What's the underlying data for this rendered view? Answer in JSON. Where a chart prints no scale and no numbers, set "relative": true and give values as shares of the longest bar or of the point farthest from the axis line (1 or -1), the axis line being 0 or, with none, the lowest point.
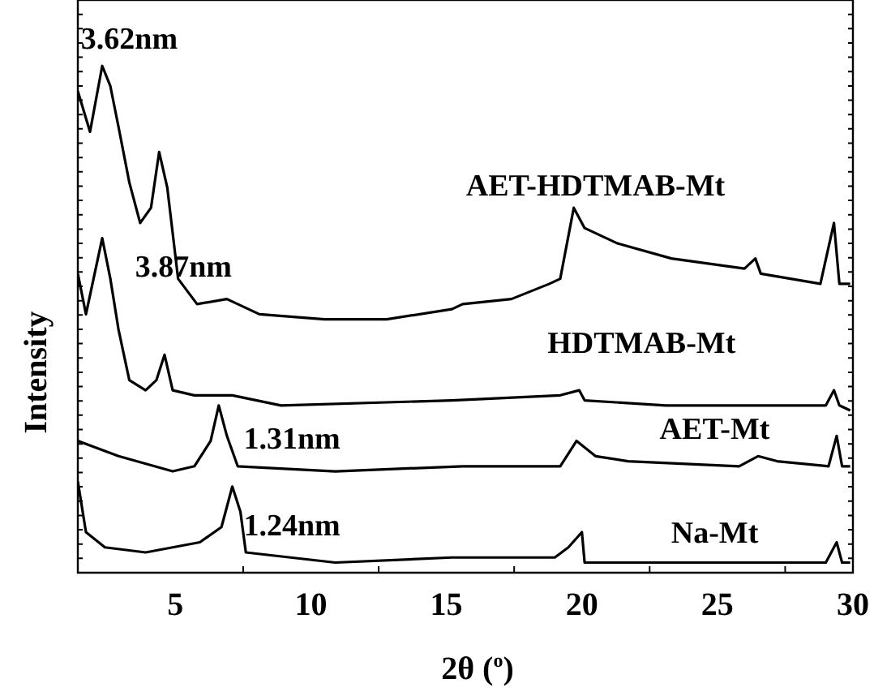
{
  "chart_data": {
    "type": "line",
    "relative": true,
    "xlabel": "2θ ($^{o}$)",
    "ylabel": "Intensity",
    "xlim": [
      1.4,
      30
    ],
    "xticks": [
      5,
      10,
      15,
      20,
      25,
      30
    ],
    "grid": false,
    "legend": false,
    "marker": "none",
    "line_style": "solid",
    "annotations": [
      "3.62nm",
      "3.87nm",
      "1.31nm",
      "1.24nm"
    ],
    "series": [
      {
        "name": "AET-HDTMAB-Mt",
        "color": "#000000",
        "x": [
          1.4,
          1.85,
          2.3,
          2.6,
          2.9,
          3.3,
          3.7,
          4.1,
          4.4,
          4.7,
          5.1,
          5.8,
          6.9,
          8.1,
          10.5,
          12.8,
          15.2,
          15.6,
          17.4,
          18.8,
          19.2,
          19.7,
          20.1,
          21.3,
          23.3,
          26.0,
          26.4,
          26.6,
          28.8,
          29.3,
          29.5,
          29.9
        ],
        "values": [
          0.95,
          0.87,
          1.0,
          0.96,
          0.88,
          0.77,
          0.69,
          0.72,
          0.83,
          0.76,
          0.58,
          0.53,
          0.54,
          0.51,
          0.5,
          0.5,
          0.52,
          0.53,
          0.54,
          0.57,
          0.58,
          0.72,
          0.68,
          0.65,
          0.62,
          0.6,
          0.62,
          0.59,
          0.57,
          0.69,
          0.57,
          0.57
        ]
      },
      {
        "name": "HDTMAB-Mt",
        "color": "#000000",
        "x": [
          1.4,
          1.7,
          2.3,
          2.6,
          2.9,
          3.3,
          3.9,
          4.3,
          4.6,
          4.9,
          5.7,
          7.1,
          8.9,
          15.2,
          19.2,
          19.9,
          20.1,
          23.1,
          29.0,
          29.3,
          29.5,
          29.9
        ],
        "values": [
          0.59,
          0.51,
          0.66,
          0.58,
          0.48,
          0.38,
          0.36,
          0.38,
          0.43,
          0.36,
          0.35,
          0.35,
          0.33,
          0.34,
          0.35,
          0.36,
          0.34,
          0.33,
          0.33,
          0.36,
          0.33,
          0.32
        ]
      },
      {
        "name": "AET-Mt",
        "color": "#000000",
        "x": [
          1.4,
          2.9,
          4.9,
          5.7,
          6.3,
          6.6,
          6.9,
          7.3,
          10.9,
          15.6,
          19.2,
          19.8,
          20.5,
          21.7,
          25.8,
          26.5,
          27.2,
          29.1,
          29.4,
          29.6,
          29.9
        ],
        "values": [
          0.26,
          0.23,
          0.2,
          0.21,
          0.26,
          0.33,
          0.27,
          0.21,
          0.2,
          0.21,
          0.21,
          0.26,
          0.23,
          0.22,
          0.21,
          0.23,
          0.22,
          0.21,
          0.27,
          0.21,
          0.21
        ]
      },
      {
        "name": "Na-Mt",
        "color": "#000000",
        "x": [
          1.4,
          1.7,
          2.4,
          3.9,
          5.9,
          6.7,
          7.1,
          7.4,
          7.6,
          10.9,
          15.2,
          19.0,
          19.5,
          20.0,
          20.1,
          29.0,
          29.4,
          29.6,
          29.9
        ],
        "values": [
          0.18,
          0.08,
          0.05,
          0.04,
          0.06,
          0.09,
          0.17,
          0.12,
          0.04,
          0.02,
          0.03,
          0.03,
          0.05,
          0.08,
          0.02,
          0.02,
          0.06,
          0.02,
          0.02
        ]
      }
    ]
  }
}
